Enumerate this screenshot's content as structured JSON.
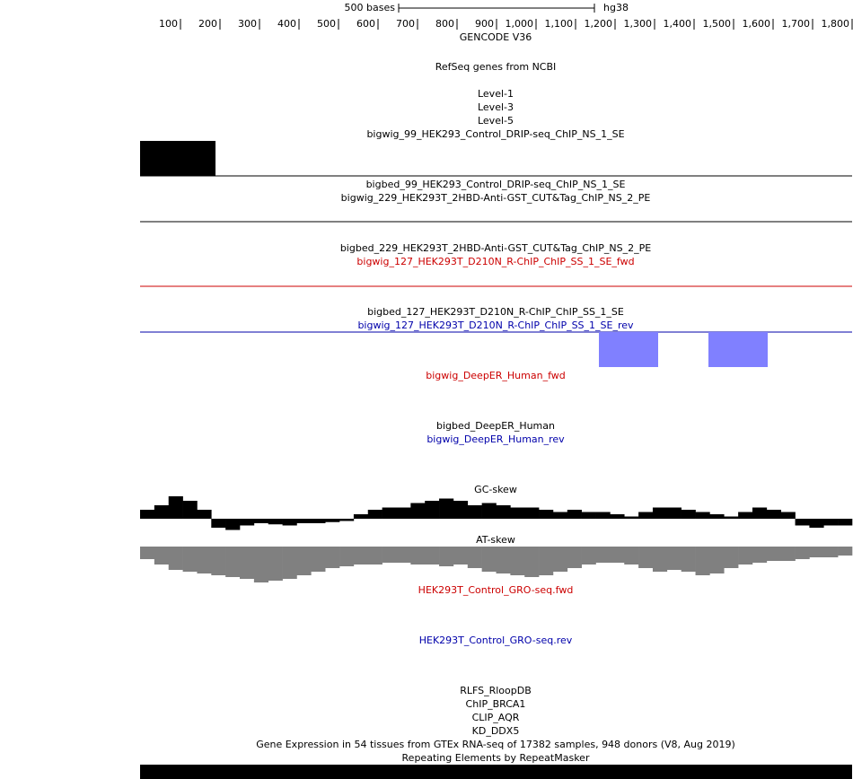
{
  "ruler": {
    "scale_label": "500 bases",
    "assembly": "hg38",
    "ticks": [
      "100",
      "200",
      "300",
      "400",
      "500",
      "600",
      "700",
      "800",
      "900",
      "1,000",
      "1,100",
      "1,200",
      "1,300",
      "1,400",
      "1,500",
      "1,600",
      "1,700",
      "1,800"
    ]
  },
  "tracks": [
    {
      "label": "GENCODE V36",
      "color": "#000000"
    },
    {
      "label": "RefSeq genes from NCBI",
      "color": "#000000"
    },
    {
      "label": "Level-1",
      "color": "#000000"
    },
    {
      "label": "Level-3",
      "color": "#000000"
    },
    {
      "label": "Level-5",
      "color": "#000000"
    },
    {
      "label": "bigwig_99_HEK293_Control_DRIP-seq_ChIP_NS_1_SE",
      "color": "#000000"
    },
    {
      "label": "bigbed_99_HEK293_Control_DRIP-seq_ChIP_NS_1_SE",
      "color": "#000000"
    },
    {
      "label": "bigwig_229_HEK293T_2HBD-Anti-GST_CUT&Tag_ChIP_NS_2_PE",
      "color": "#000000"
    },
    {
      "label": "bigbed_229_HEK293T_2HBD-Anti-GST_CUT&Tag_ChIP_NS_2_PE",
      "color": "#000000"
    },
    {
      "label": "bigwig_127_HEK293T_D210N_R-ChIP_ChIP_SS_1_SE_fwd",
      "color": "#cc0000"
    },
    {
      "label": "bigbed_127_HEK293T_D210N_R-ChIP_ChIP_SS_1_SE",
      "color": "#000000"
    },
    {
      "label": "bigwig_127_HEK293T_D210N_R-ChIP_ChIP_SS_1_SE_rev",
      "color": "#0000aa"
    },
    {
      "label": "bigwig_DeepER_Human_fwd",
      "color": "#cc0000"
    },
    {
      "label": "bigbed_DeepER_Human",
      "color": "#000000"
    },
    {
      "label": "bigwig_DeepER_Human_rev",
      "color": "#0000aa"
    },
    {
      "label": "GC-skew",
      "color": "#000000"
    },
    {
      "label": "AT-skew",
      "color": "#000000"
    },
    {
      "label": "HEK293T_Control_GRO-seq.fwd",
      "color": "#cc0000"
    },
    {
      "label": "HEK293T_Control_GRO-seq.rev",
      "color": "#0000aa"
    },
    {
      "label": "RLFS_RloopDB",
      "color": "#000000"
    },
    {
      "label": "ChIP_BRCA1",
      "color": "#000000"
    },
    {
      "label": "CLIP_AQR",
      "color": "#000000"
    },
    {
      "label": "KD_DDX5",
      "color": "#000000"
    },
    {
      "label": "Gene Expression in 54 tissues from GTEx RNA-seq of 17382 samples, 948 donors (V8, Aug 2019)",
      "color": "#000000"
    },
    {
      "label": "Repeating Elements by RepeatMasker",
      "color": "#000000"
    }
  ],
  "signals": {
    "gc_skew": {
      "color": "#000000",
      "values": [
        0.4,
        0.6,
        1.0,
        0.8,
        0.4,
        -0.4,
        -0.5,
        -0.3,
        -0.2,
        -0.25,
        -0.3,
        -0.2,
        -0.2,
        -0.15,
        -0.1,
        0.2,
        0.4,
        0.5,
        0.5,
        0.7,
        0.8,
        0.9,
        0.8,
        0.6,
        0.7,
        0.6,
        0.5,
        0.5,
        0.4,
        0.3,
        0.4,
        0.3,
        0.3,
        0.2,
        0.1,
        0.3,
        0.5,
        0.5,
        0.4,
        0.3,
        0.2,
        0.1,
        0.3,
        0.5,
        0.4,
        0.3,
        -0.3,
        -0.4,
        -0.3,
        -0.3
      ]
    },
    "at_skew": {
      "color": "#808080",
      "values": [
        -0.35,
        -0.5,
        -0.65,
        -0.7,
        -0.75,
        -0.8,
        -0.85,
        -0.9,
        -1.0,
        -0.95,
        -0.9,
        -0.8,
        -0.7,
        -0.6,
        -0.55,
        -0.5,
        -0.5,
        -0.45,
        -0.45,
        -0.5,
        -0.5,
        -0.55,
        -0.5,
        -0.6,
        -0.7,
        -0.75,
        -0.8,
        -0.85,
        -0.8,
        -0.7,
        -0.6,
        -0.5,
        -0.45,
        -0.45,
        -0.5,
        -0.6,
        -0.7,
        -0.65,
        -0.7,
        -0.8,
        -0.75,
        -0.6,
        -0.5,
        -0.45,
        -0.4,
        -0.4,
        -0.35,
        -0.3,
        -0.3,
        -0.25
      ]
    }
  }
}
